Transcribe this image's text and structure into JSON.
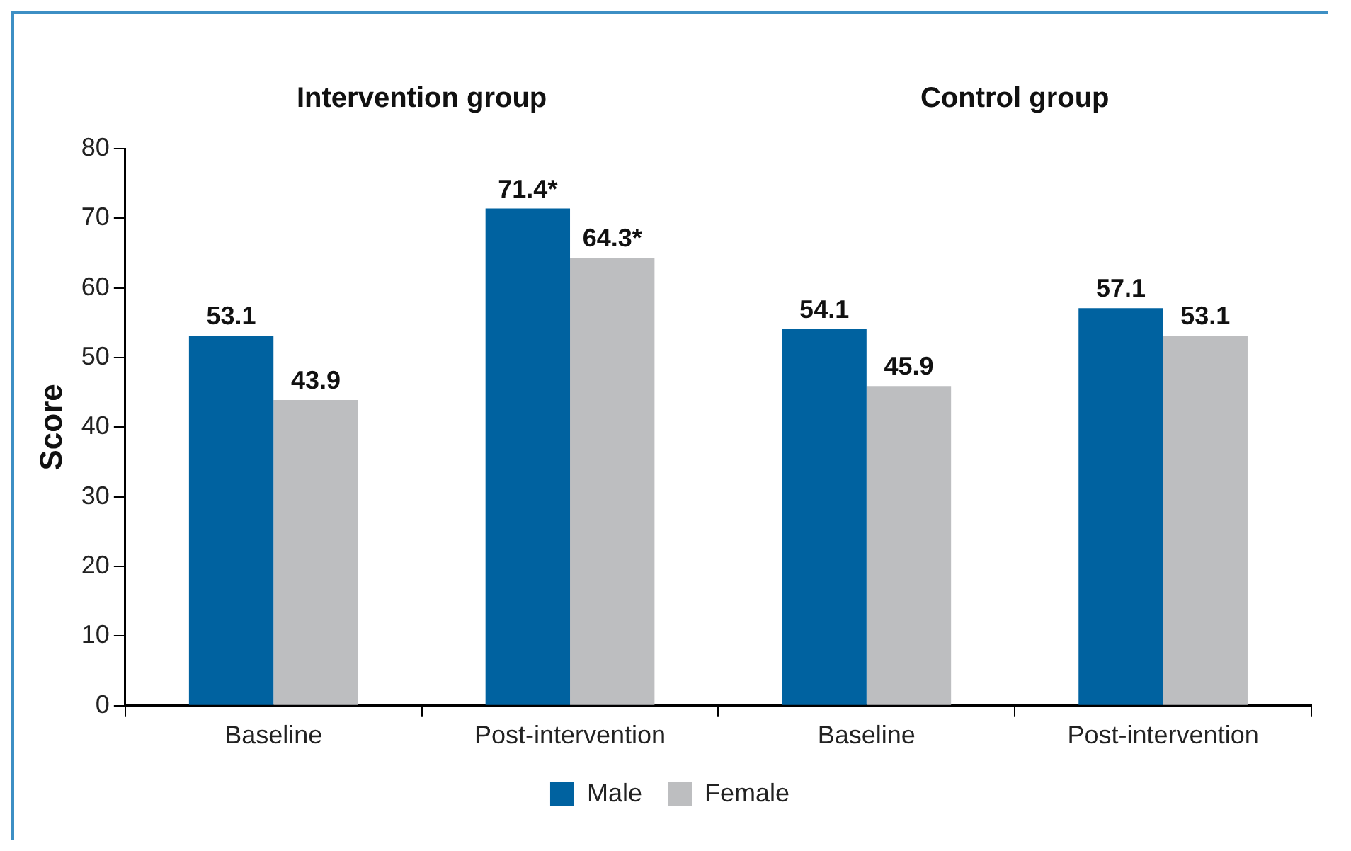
{
  "chart_data": {
    "type": "bar",
    "categories": [
      "Baseline",
      "Post-intervention",
      "Baseline",
      "Post-intervention"
    ],
    "series": [
      {
        "name": "Male",
        "color": "#0062a0",
        "values": [
          53.1,
          71.4,
          54.1,
          57.1
        ],
        "value_labels": [
          "53.1",
          "71.4*",
          "54.1",
          "57.1"
        ]
      },
      {
        "name": "Female",
        "color": "#bdbec0",
        "values": [
          43.9,
          64.3,
          45.9,
          53.1
        ],
        "value_labels": [
          "43.9",
          "64.3*",
          "45.9",
          "53.1"
        ]
      }
    ],
    "ylabel": "Score",
    "ylim": [
      0,
      80
    ],
    "yticks": [
      0,
      10,
      20,
      30,
      40,
      50,
      60,
      70,
      80
    ],
    "annotations": [
      "Intervention group",
      "Control group"
    ],
    "grid": false,
    "legend": "bottom"
  }
}
